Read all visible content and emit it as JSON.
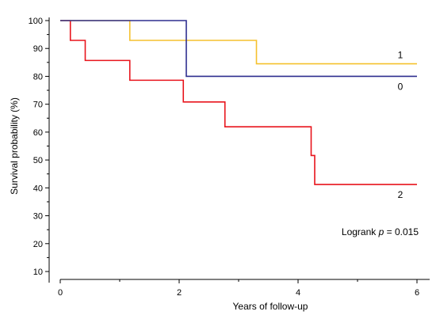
{
  "chart_data": {
    "type": "line",
    "step": true,
    "xlabel": "Years of follow-up",
    "ylabel": "Survival probability (%)",
    "xlim": [
      0,
      6
    ],
    "ylim": [
      10,
      100
    ],
    "y_axis_min_drawn": 6,
    "xticks": [
      0,
      2,
      4,
      6
    ],
    "xminor": [
      1,
      3,
      5
    ],
    "yticks": [
      10,
      20,
      30,
      40,
      50,
      60,
      70,
      80,
      90,
      100
    ],
    "grid": false,
    "series": [
      {
        "name": "0",
        "color": "#2e2e8f",
        "x": [
          0,
          2.12,
          6
        ],
        "y": [
          100,
          80,
          80
        ]
      },
      {
        "name": "1",
        "color": "#f5c12e",
        "x": [
          0,
          1.17,
          3.3,
          6
        ],
        "y": [
          100,
          92.9,
          84.5,
          84.5
        ]
      },
      {
        "name": "2",
        "color": "#e8141c",
        "x": [
          0,
          0.17,
          0.42,
          1.17,
          2.07,
          2.77,
          4.22,
          4.28,
          6
        ],
        "y": [
          100,
          92.9,
          85.7,
          78.6,
          70.8,
          61.9,
          51.6,
          41.2,
          41.2
        ]
      }
    ],
    "annotation": {
      "prefix": "Logrank ",
      "italic": "p",
      "suffix": " = 0.015"
    }
  }
}
